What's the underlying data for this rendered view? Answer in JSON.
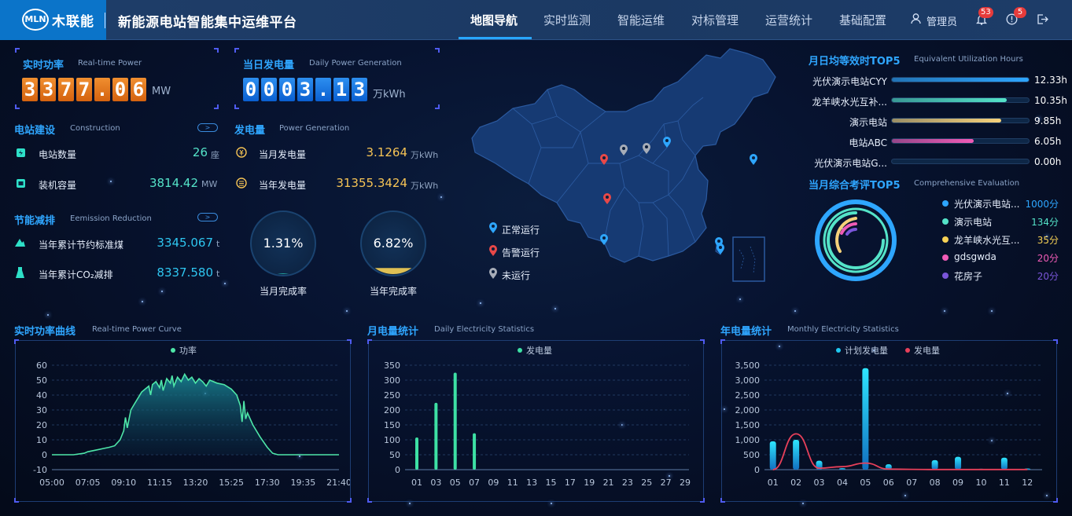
{
  "header": {
    "logo_mark": "MLN",
    "logo_text": "木联能",
    "app_title": "新能源电站智能集中运维平台",
    "nav": [
      "地图导航",
      "实时监测",
      "智能运维",
      "对标管理",
      "运营统计",
      "基础配置"
    ],
    "active_nav": "地图导航",
    "user": "管理员",
    "alarm_badge": "53",
    "info_badge": "5"
  },
  "realtime_power": {
    "title": "实时功率",
    "subtitle": "Real-time Power",
    "digits": [
      "3",
      "3",
      "7",
      "7",
      ".",
      "0",
      "6"
    ],
    "unit": "MW"
  },
  "daily_gen": {
    "title": "当日发电量",
    "subtitle": "Daily Power Generation",
    "digits": [
      "0",
      "0",
      "0",
      "3",
      ".",
      "1",
      "3"
    ],
    "unit": "万kWh"
  },
  "construction": {
    "title": "电站建设",
    "subtitle": "Construction",
    "rows": [
      {
        "label": "电站数量",
        "value": "26",
        "unit": "座"
      },
      {
        "label": "装机容量",
        "value": "3814.42",
        "unit": "MW"
      }
    ]
  },
  "generation": {
    "title": "发电量",
    "subtitle": "Power Generation",
    "rows": [
      {
        "label": "当月发电量",
        "value": "3.1264",
        "unit": "万kWh"
      },
      {
        "label": "当年发电量",
        "value": "31355.3424",
        "unit": "万kWh"
      }
    ]
  },
  "emission": {
    "title": "节能减排",
    "subtitle": "Eemission Reduction",
    "rows": [
      {
        "label": "当年累计节约标准煤",
        "value": "3345.067",
        "unit": "t"
      },
      {
        "label": "当年累计CO₂减排",
        "value": "8337.580",
        "unit": "t"
      }
    ]
  },
  "completion": [
    {
      "value": "1.31%",
      "label": "当月完成率",
      "fraction": 0.0131,
      "color": "#2ee0c8"
    },
    {
      "value": "6.82%",
      "label": "当年完成率",
      "fraction": 0.0682,
      "color": "#f6d155"
    }
  ],
  "map_legend": [
    {
      "label": "正常运行",
      "color": "#2ea6ff"
    },
    {
      "label": "告警运行",
      "color": "#e84848"
    },
    {
      "label": "未运行",
      "color": "#a7adb8"
    }
  ],
  "top5_hours": {
    "title": "月日均等效时TOP5",
    "subtitle": "Equivalent Utilization Hours",
    "items": [
      {
        "name": "光伏演示电站CYY",
        "value": "12.33h",
        "fraction": 1.0,
        "color": "#2ea6ff"
      },
      {
        "name": "龙羊峡水光互补...",
        "value": "10.35h",
        "fraction": 0.84,
        "color": "#54e3c8"
      },
      {
        "name": "演示电站",
        "value": "9.85h",
        "fraction": 0.8,
        "color": "#f6d17a"
      },
      {
        "name": "电站ABC",
        "value": "6.05h",
        "fraction": 0.6,
        "color": "#f05bb6"
      },
      {
        "name": "光伏演示电站G...",
        "value": "0.00h",
        "fraction": 0.0,
        "color": "#2ea6ff"
      }
    ]
  },
  "top5_eval": {
    "title": "当月综合考评TOP5",
    "subtitle": "Comprehensive Evaluation",
    "items": [
      {
        "name": "光伏演示电站...",
        "value": "1000分",
        "color": "#2ea6ff"
      },
      {
        "name": "演示电站",
        "value": "134分",
        "color": "#54e3c8"
      },
      {
        "name": "龙羊峡水光互...",
        "value": "35分",
        "color": "#f6d155"
      },
      {
        "name": "gdsgwda",
        "value": "20分",
        "color": "#f05bb6"
      },
      {
        "name": "花房子",
        "value": "20分",
        "color": "#7a55d9"
      }
    ]
  },
  "chart_data": [
    {
      "type": "area",
      "title": "实时功率曲线",
      "subtitle": "Real-time Power Curve",
      "legend": "功率",
      "x_ticks": [
        "05:00",
        "07:05",
        "09:10",
        "11:15",
        "13:20",
        "15:25",
        "17:30",
        "19:35",
        "21:40"
      ],
      "ylim": [
        -10,
        60
      ],
      "y_ticks": [
        -10,
        0,
        10,
        20,
        30,
        40,
        50,
        60
      ],
      "x_range": [
        0,
        8
      ],
      "points": [
        [
          0,
          0
        ],
        [
          0.6,
          0
        ],
        [
          0.9,
          1
        ],
        [
          1.0,
          2
        ],
        [
          1.2,
          3
        ],
        [
          1.4,
          4
        ],
        [
          1.6,
          5
        ],
        [
          1.75,
          6
        ],
        [
          1.9,
          10
        ],
        [
          2.0,
          16
        ],
        [
          2.05,
          25
        ],
        [
          2.1,
          18
        ],
        [
          2.2,
          30
        ],
        [
          2.3,
          34
        ],
        [
          2.4,
          38
        ],
        [
          2.5,
          42
        ],
        [
          2.6,
          44
        ],
        [
          2.7,
          46
        ],
        [
          2.75,
          40
        ],
        [
          2.8,
          47
        ],
        [
          2.9,
          49
        ],
        [
          3.0,
          45
        ],
        [
          3.05,
          50
        ],
        [
          3.1,
          43
        ],
        [
          3.2,
          51
        ],
        [
          3.3,
          48
        ],
        [
          3.35,
          53
        ],
        [
          3.4,
          46
        ],
        [
          3.5,
          52
        ],
        [
          3.6,
          49
        ],
        [
          3.7,
          54
        ],
        [
          3.8,
          50
        ],
        [
          3.9,
          52
        ],
        [
          4.0,
          48
        ],
        [
          4.1,
          51
        ],
        [
          4.2,
          49
        ],
        [
          4.3,
          46
        ],
        [
          4.4,
          50
        ],
        [
          4.5,
          49
        ],
        [
          4.6,
          48
        ],
        [
          4.8,
          47
        ],
        [
          5.0,
          44
        ],
        [
          5.15,
          40
        ],
        [
          5.25,
          33
        ],
        [
          5.3,
          22
        ],
        [
          5.35,
          36
        ],
        [
          5.4,
          24
        ],
        [
          5.45,
          28
        ],
        [
          5.6,
          20
        ],
        [
          5.8,
          12
        ],
        [
          6.0,
          5
        ],
        [
          6.15,
          1
        ],
        [
          6.3,
          0
        ],
        [
          7.0,
          0
        ],
        [
          8.0,
          0
        ]
      ]
    },
    {
      "type": "bar",
      "title": "月电量统计",
      "subtitle": "Daily Electricity Statistics",
      "legend": "发电量",
      "categories": [
        "01",
        "02",
        "03",
        "04",
        "05",
        "06",
        "07",
        "08",
        "09",
        "10",
        "11",
        "12",
        "13",
        "14",
        "15",
        "16",
        "17",
        "18",
        "19",
        "20",
        "21",
        "22",
        "23",
        "24",
        "25",
        "26",
        "27",
        "28",
        "29"
      ],
      "x_tick_labels": [
        "01",
        "03",
        "05",
        "07",
        "09",
        "11",
        "13",
        "15",
        "17",
        "19",
        "21",
        "23",
        "25",
        "27",
        "29"
      ],
      "values": [
        108,
        0,
        224,
        0,
        325,
        0,
        122,
        0,
        0,
        0,
        0,
        0,
        0,
        0,
        0,
        0,
        0,
        0,
        0,
        0,
        0,
        0,
        0,
        0,
        0,
        0,
        0,
        0,
        0
      ],
      "ylim": [
        0,
        350
      ],
      "y_ticks": [
        0,
        50,
        100,
        150,
        200,
        250,
        300,
        350
      ]
    },
    {
      "type": "bar+line",
      "title": "年电量统计",
      "subtitle": "Monthly Electricity Statistics",
      "series": [
        {
          "name": "计划发电量",
          "color": "#1fc8f0",
          "values": [
            950,
            1000,
            300,
            50,
            3400,
            180,
            20,
            320,
            430,
            30,
            400,
            40
          ]
        },
        {
          "name": "发电量",
          "color": "#e8405a",
          "values": [
            0,
            1200,
            50,
            100,
            220,
            20,
            10,
            5,
            5,
            5,
            5,
            5
          ]
        }
      ],
      "categories": [
        "01",
        "02",
        "03",
        "04",
        "05",
        "06",
        "07",
        "08",
        "09",
        "10",
        "11",
        "12"
      ],
      "ylim": [
        0,
        3500
      ],
      "y_ticks": [
        "0",
        "500",
        "1,000",
        "1,500",
        "2,000",
        "2,500",
        "3,000",
        "3,500"
      ]
    }
  ]
}
